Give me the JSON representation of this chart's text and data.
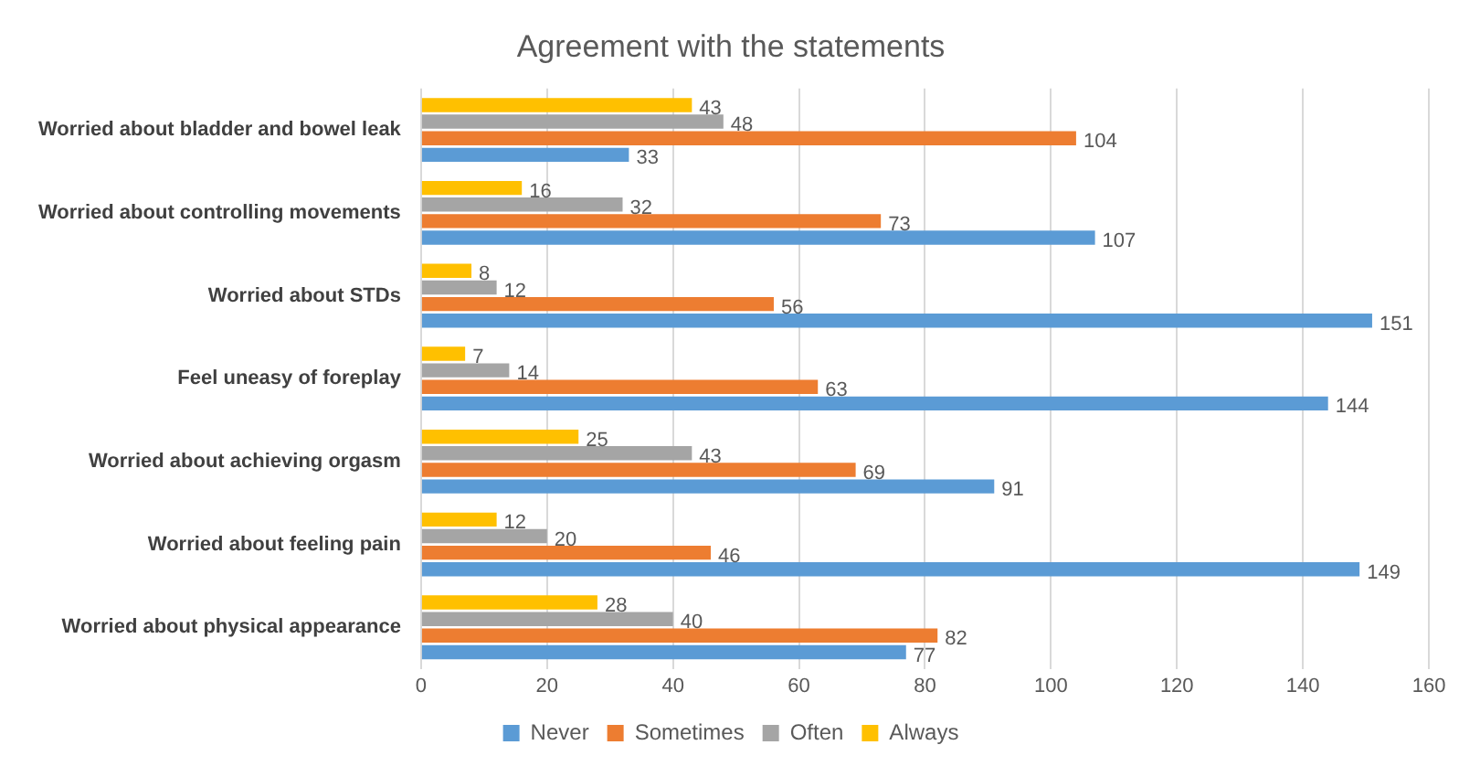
{
  "chart_data": {
    "type": "bar",
    "orientation": "horizontal",
    "title": "Agreement with the statements",
    "categories": [
      "Worried about bladder and bowel leak",
      "Worried about controlling movements",
      "Worried about STDs",
      "Feel uneasy of foreplay",
      "Worried about achieving orgasm",
      "Worried about feeling pain",
      "Worried about physical appearance"
    ],
    "series": [
      {
        "name": "Never",
        "color": "#5b9bd5",
        "values": [
          33,
          107,
          151,
          144,
          91,
          149,
          77
        ]
      },
      {
        "name": "Sometimes",
        "color": "#ed7d31",
        "values": [
          104,
          73,
          56,
          63,
          69,
          46,
          82
        ]
      },
      {
        "name": "Often",
        "color": "#a5a5a5",
        "values": [
          48,
          32,
          12,
          14,
          43,
          20,
          40
        ]
      },
      {
        "name": "Always",
        "color": "#ffc000",
        "values": [
          43,
          16,
          8,
          7,
          25,
          12,
          28
        ]
      }
    ],
    "xlim": [
      0,
      160
    ],
    "xticks": [
      0,
      20,
      40,
      60,
      80,
      100,
      120,
      140,
      160
    ],
    "grid": "x",
    "legend": "bottom",
    "data_labels": true
  }
}
